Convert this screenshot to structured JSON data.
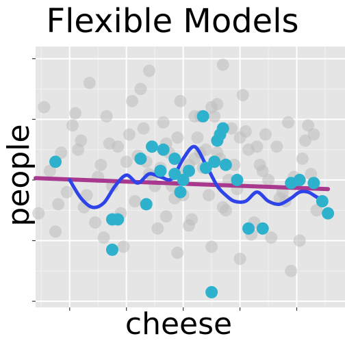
{
  "chart_data": {
    "type": "scatter",
    "title": "Flexible Models",
    "xlabel": "cheese",
    "ylabel": "people",
    "xlim": [
      -0.6,
      4.85
    ],
    "ylim": [
      -2.1,
      2.2
    ],
    "x_major_ticks": [
      0,
      1,
      2,
      3,
      4
    ],
    "x_minor_ticks": [
      -0.5,
      0.5,
      1.5,
      2.5,
      3.5,
      4.5
    ],
    "y_major_ticks": [
      -2,
      -1,
      0,
      1,
      2
    ],
    "y_minor_ticks": [
      -1.5,
      -0.5,
      0.5,
      1.5
    ],
    "grid": true,
    "panel_background": "#e5e5e5",
    "colors": {
      "background_points": "#bdbdbd",
      "highlight_points": "#2eb1cc",
      "linear_fit": "#a8398e",
      "flexible_fit": "#2e43e8"
    },
    "series": [
      {
        "role": "background points",
        "x": [
          -0.55,
          -0.45,
          -0.35,
          -0.25,
          -0.15,
          -0.05,
          0.05,
          0.15,
          0.25,
          0.35,
          0.45,
          0.55,
          0.65,
          0.75,
          0.85,
          0.95,
          1.05,
          1.15,
          1.25,
          1.35,
          1.45,
          1.55,
          1.65,
          1.75,
          1.85,
          1.95,
          2.05,
          2.15,
          2.25,
          2.35,
          2.45,
          2.55,
          2.65,
          2.75,
          2.85,
          2.95,
          3.05,
          3.15,
          3.25,
          3.35,
          3.45,
          3.55,
          3.65,
          3.75,
          3.85,
          3.95,
          4.05,
          4.15,
          4.25,
          4.35,
          -0.2,
          0.2,
          0.6,
          1.0,
          1.4,
          1.8,
          2.2,
          2.6,
          3.0,
          3.4,
          3.8,
          4.2,
          0.1,
          0.5,
          0.9,
          1.3,
          1.7,
          2.1,
          2.5,
          2.9,
          3.3,
          3.7,
          4.1,
          0.3,
          0.7,
          1.1,
          1.5,
          1.9,
          2.3,
          2.7,
          3.1,
          3.5,
          3.9,
          4.3,
          1.2,
          1.6,
          2.0,
          2.4,
          2.8,
          3.2,
          1.9,
          2.3,
          1.7,
          2.7,
          2.1,
          2.5,
          1.4,
          3.0,
          2.2,
          2.6
        ],
        "y": [
          -0.55,
          1.2,
          0.15,
          -0.85,
          0.45,
          -0.2,
          0.9,
          0.5,
          -0.45,
          1.6,
          -0.7,
          0.25,
          1.05,
          -0.1,
          0.55,
          -1.1,
          0.75,
          -0.35,
          1.5,
          0.3,
          0.05,
          -0.8,
          0.95,
          0.45,
          -0.3,
          1.3,
          0.15,
          -0.65,
          0.7,
          0.2,
          -0.25,
          1.05,
          0.35,
          -0.5,
          0.85,
          -0.15,
          1.4,
          0.5,
          -0.7,
          0.25,
          0.75,
          -0.95,
          0.55,
          -0.2,
          0.95,
          0.05,
          -1.0,
          0.65,
          0.1,
          -0.5,
          -0.4,
          0.65,
          -0.95,
          0.3,
          1.8,
          -0.1,
          1.05,
          0.45,
          -1.3,
          0.15,
          -0.35,
          0.9,
          1.1,
          0.05,
          -0.55,
          0.85,
          0.6,
          -0.75,
          1.2,
          0.25,
          0.55,
          -0.3,
          0.35,
          -0.25,
          0.6,
          1.3,
          -0.1,
          -1.2,
          0.45,
          -0.45,
          0.8,
          0.0,
          -1.5,
          0.75,
          0.4,
          0.2,
          -0.25,
          0.5,
          0.0,
          -0.9,
          0.7,
          1.05,
          -0.6,
          1.9,
          0.25,
          -1.1,
          0.1,
          0.7,
          0.35,
          1.25
        ]
      },
      {
        "role": "highlighted points",
        "x": [
          -0.25,
          0.75,
          0.85,
          0.75,
          1.25,
          1.35,
          1.45,
          1.6,
          1.65,
          1.85,
          1.95,
          2.1,
          2.35,
          2.4,
          2.5,
          2.6,
          2.65,
          2.75,
          2.7,
          2.95,
          3.15,
          3.4,
          3.9,
          4.05,
          4.3,
          4.45,
          4.55,
          1.85,
          2.0,
          2.55
        ],
        "y": [
          0.3,
          -0.65,
          -0.65,
          -1.15,
          0.35,
          -0.4,
          0.55,
          0.15,
          0.5,
          0.1,
          -0.2,
          0.15,
          1.05,
          0.2,
          -1.85,
          0.65,
          0.75,
          0.25,
          0.85,
          0.0,
          -0.8,
          -0.8,
          -0.05,
          0.0,
          -0.05,
          -0.35,
          -0.55,
          0.35,
          0.0,
          0.3
        ]
      },
      {
        "role": "linear fit",
        "x": [
          -0.6,
          4.55
        ],
        "y": [
          0.03,
          -0.15
        ]
      },
      {
        "role": "flexible fit",
        "x": [
          0.0,
          0.2,
          0.4,
          0.6,
          0.8,
          1.0,
          1.2,
          1.4,
          1.6,
          1.8,
          2.0,
          2.2,
          2.4,
          2.6,
          2.75,
          2.9,
          3.1,
          3.3,
          3.5,
          3.7,
          3.9,
          4.05,
          4.2,
          4.35,
          4.5
        ],
        "y": [
          0.0,
          -0.3,
          -0.45,
          -0.38,
          -0.1,
          0.08,
          -0.05,
          0.1,
          0.05,
          0.02,
          0.35,
          0.55,
          0.25,
          -0.1,
          -0.25,
          -0.35,
          -0.35,
          -0.2,
          -0.35,
          -0.4,
          -0.3,
          -0.2,
          -0.2,
          -0.28,
          -0.35
        ]
      }
    ]
  }
}
